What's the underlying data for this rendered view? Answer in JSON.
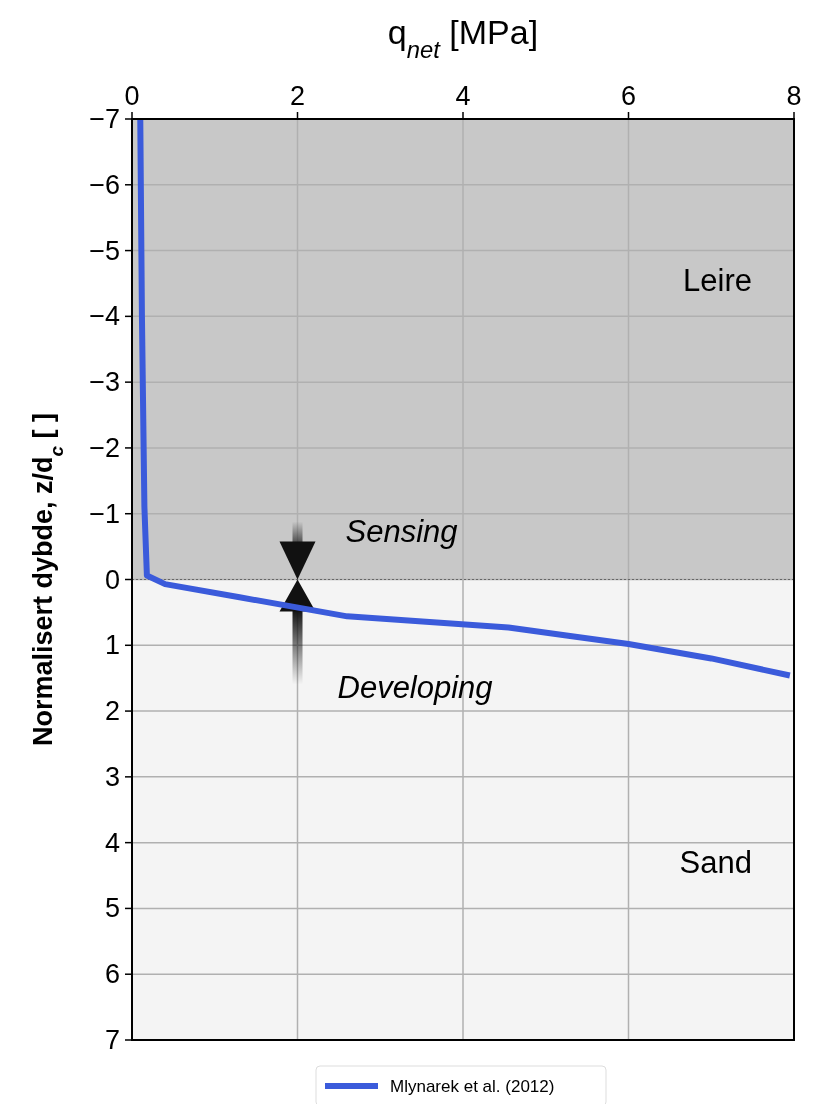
{
  "chart_data": {
    "type": "line",
    "xlabel": "q$_{net}$ [MPa]",
    "ylabel": "Normalisert dybde, z/d$_{c}$ [ ]",
    "xlim": [
      0,
      8
    ],
    "xticks": [
      0,
      2,
      4,
      6,
      8
    ],
    "ylim": [
      7,
      -7
    ],
    "yticks": [
      -7,
      -6,
      -5,
      -4,
      -3,
      -2,
      -1,
      0,
      1,
      2,
      3,
      4,
      5,
      6,
      7
    ],
    "grid": true,
    "legend": "bottom",
    "line_style": "solid",
    "bands": [
      {
        "axis": "y",
        "from": -7,
        "to": 0,
        "label": "Leire",
        "color": "#c8c8c8"
      },
      {
        "axis": "y",
        "from": 0,
        "to": 7,
        "label": "Sand",
        "color": "#f4f4f4"
      }
    ],
    "ref_lines": [
      {
        "axis": "y",
        "value": 0,
        "color": "#666666",
        "line_style": "dotted"
      }
    ],
    "annotations": [
      "Sensing",
      "Developing"
    ],
    "series": [
      {
        "name": "Mlynarek et al. (2012)",
        "color": "#3b5bdb",
        "x": [
          0.1,
          0.12,
          0.15,
          0.18,
          0.4,
          1.3,
          2.6,
          4.55,
          5.25,
          6,
          7,
          7.95
        ],
        "values": [
          -7,
          -4,
          -1.1,
          -0.06,
          0.07,
          0.27,
          0.56,
          0.73,
          0.85,
          0.98,
          1.2,
          1.46
        ]
      }
    ]
  }
}
